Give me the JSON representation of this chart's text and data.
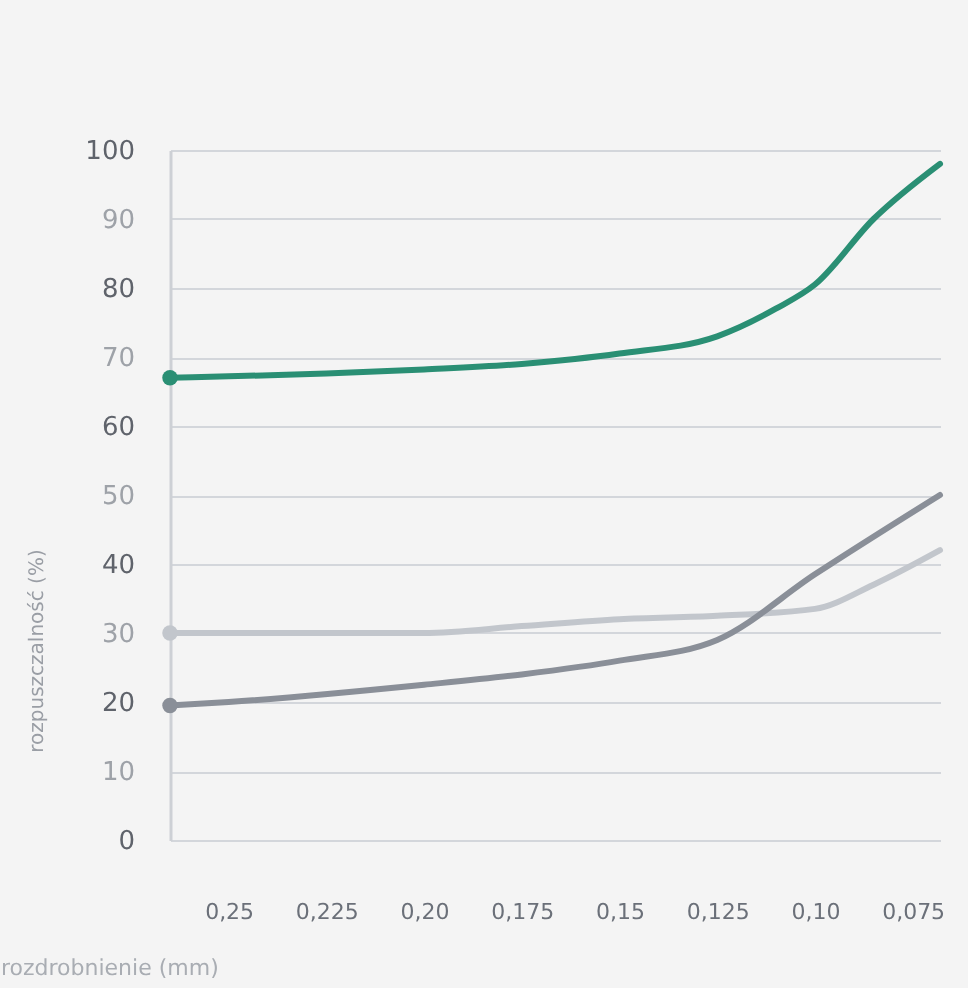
{
  "chart_data": {
    "type": "line",
    "xlabel": "rozdrobnienie (mm)",
    "ylabel": "rozpuszczalność (%)",
    "xlim": [
      0.265,
      0.068
    ],
    "ylim": [
      0,
      100
    ],
    "xticks": [
      {
        "value": 0.25,
        "label": "0,25"
      },
      {
        "value": 0.225,
        "label": "0,225"
      },
      {
        "value": 0.2,
        "label": "0,20"
      },
      {
        "value": 0.175,
        "label": "0,175"
      },
      {
        "value": 0.15,
        "label": "0,15"
      },
      {
        "value": 0.125,
        "label": "0,125"
      },
      {
        "value": 0.1,
        "label": "0,10"
      },
      {
        "value": 0.075,
        "label": "0,075"
      }
    ],
    "yticks": [
      0,
      10,
      20,
      30,
      40,
      50,
      60,
      70,
      80,
      90,
      100
    ],
    "grid": "y",
    "legend": false,
    "series": [
      {
        "color": "#2a8f74",
        "x": [
          0.265,
          0.25,
          0.225,
          0.2,
          0.175,
          0.15,
          0.125,
          0.11,
          0.1,
          0.085,
          0.068
        ],
        "values": [
          67,
          67.2,
          67.6,
          68.2,
          69,
          70.5,
          73,
          77,
          80.5,
          90,
          98
        ]
      },
      {
        "color": "#c2c6cc",
        "x": [
          0.265,
          0.25,
          0.225,
          0.2,
          0.175,
          0.15,
          0.125,
          0.1,
          0.085,
          0.068
        ],
        "values": [
          30,
          30,
          30,
          30,
          31,
          32,
          32.5,
          33.5,
          37,
          42
        ]
      },
      {
        "color": "#8a8f98",
        "x": [
          0.265,
          0.25,
          0.2,
          0.175,
          0.15,
          0.125,
          0.1,
          0.068
        ],
        "values": [
          19.5,
          20,
          22.5,
          24,
          26,
          29,
          38.5,
          50
        ]
      }
    ]
  }
}
